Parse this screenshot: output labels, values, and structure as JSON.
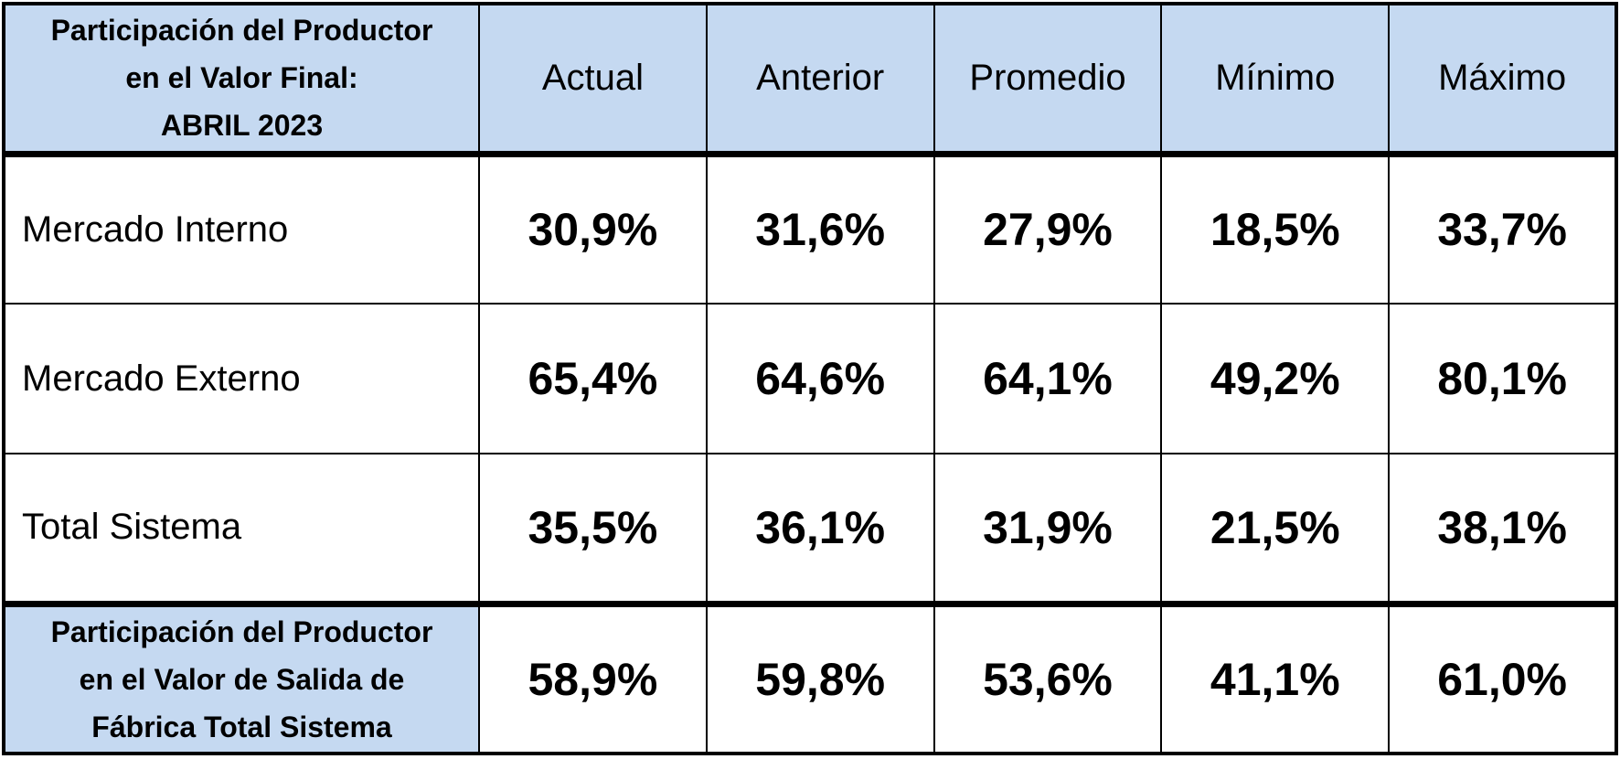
{
  "table": {
    "header": {
      "label_lines": [
        "Participación del Productor",
        "en el Valor Final:",
        "ABRIL 2023"
      ],
      "columns": [
        "Actual",
        "Anterior",
        "Promedio",
        "Mínimo",
        "Máximo"
      ]
    },
    "rows": [
      {
        "label": "Mercado Interno",
        "values": [
          "30,9%",
          "31,6%",
          "27,9%",
          "18,5%",
          "33,7%"
        ]
      },
      {
        "label": "Mercado Externo",
        "values": [
          "65,4%",
          "64,6%",
          "64,1%",
          "49,2%",
          "80,1%"
        ]
      },
      {
        "label": "Total Sistema",
        "values": [
          "35,5%",
          "36,1%",
          "31,9%",
          "21,5%",
          "38,1%"
        ]
      }
    ],
    "footer": {
      "label_lines": [
        "Participación del Productor",
        "en el Valor de Salida de",
        "Fábrica Total Sistema"
      ],
      "values": [
        "58,9%",
        "59,8%",
        "53,6%",
        "41,1%",
        "61,0%"
      ]
    }
  }
}
